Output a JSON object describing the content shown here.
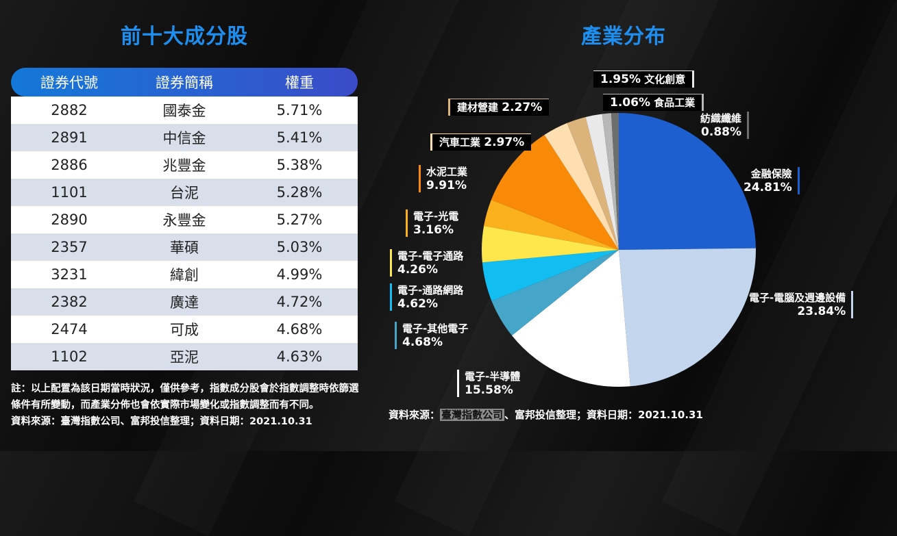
{
  "left_title": "前十大成分股",
  "right_title": "產業分布",
  "table": {
    "headers": [
      "證券代號",
      "證券簡稱",
      "權重"
    ],
    "rows": [
      [
        "2882",
        "國泰金",
        "5.71%"
      ],
      [
        "2891",
        "中信金",
        "5.41%"
      ],
      [
        "2886",
        "兆豐金",
        "5.38%"
      ],
      [
        "1101",
        "台泥",
        "5.28%"
      ],
      [
        "2890",
        "永豐金",
        "5.27%"
      ],
      [
        "2357",
        "華碩",
        "5.03%"
      ],
      [
        "3231",
        "緯創",
        "4.99%"
      ],
      [
        "2382",
        "廣達",
        "4.72%"
      ],
      [
        "2474",
        "可成",
        "4.68%"
      ],
      [
        "1102",
        "亞泥",
        "4.63%"
      ]
    ]
  },
  "note": {
    "line1": "註：以上配置為該日期當時狀況，僅供參考，指數成分股會於指數調整時依篩選條件有所變動，而產業分佈也會依實際市場變化或指數調整而有不同。",
    "line2": "資料來源：臺灣指數公司、富邦投信整理；資料日期：2021.10.31"
  },
  "source2": {
    "prefix": "資料來源：",
    "highlight": "臺灣指數公司",
    "suffix": "、富邦投信整理；資料日期：2021.10.31"
  },
  "chart_data": {
    "type": "pie",
    "title": "產業分布",
    "start_angle_deg": 0,
    "direction": "clockwise",
    "slices": [
      {
        "name": "金融保險",
        "value": 24.81,
        "label": "24.81%",
        "color": "#1e5fd0"
      },
      {
        "name": "電子-電腦及週邊設備",
        "value": 23.84,
        "label": "23.84%",
        "color": "#c3d6ee"
      },
      {
        "name": "電子-半導體",
        "value": 15.58,
        "label": "15.58%",
        "color": "#ffffff"
      },
      {
        "name": "電子-其他電子",
        "value": 4.68,
        "label": "4.68%",
        "color": "#46a6c9"
      },
      {
        "name": "電子-通路網路",
        "value": 4.62,
        "label": "4.62%",
        "color": "#12bdf2"
      },
      {
        "name": "電子-電子通路",
        "value": 4.26,
        "label": "4.26%",
        "color": "#fde74c"
      },
      {
        "name": "電子-光電",
        "value": 3.16,
        "label": "3.16%",
        "color": "#fbb11e"
      },
      {
        "name": "水泥工業",
        "value": 9.91,
        "label": "9.91%",
        "color": "#f98a08"
      },
      {
        "name": "汽車工業",
        "value": 2.97,
        "label": "2.97%",
        "color": "#fddfb2"
      },
      {
        "name": "建材營建",
        "value": 2.27,
        "label": "2.27%",
        "color": "#dcb47b"
      },
      {
        "name": "文化創意",
        "value": 1.95,
        "label": "1.95%",
        "color": "#e9e9e9"
      },
      {
        "name": "食品工業",
        "value": 1.06,
        "label": "1.06%",
        "color": "#b8b8b8"
      },
      {
        "name": "紡織纖維",
        "value": 0.88,
        "label": "0.88%",
        "color": "#6e6e6e"
      }
    ]
  }
}
